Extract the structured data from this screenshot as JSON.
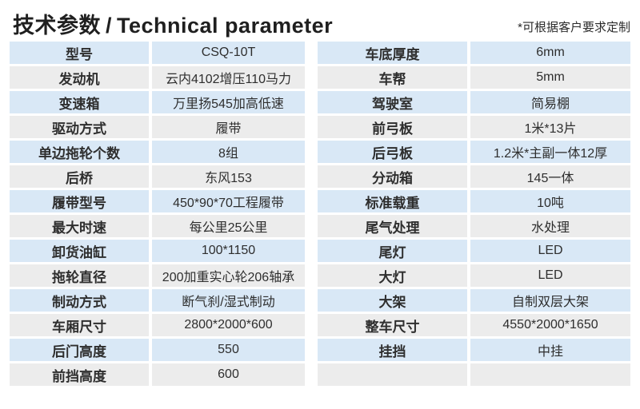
{
  "header": {
    "title_zh": "技术参数",
    "separator": "/",
    "title_en": "Technical parameter",
    "note": "*可根据客户要求定制"
  },
  "colors": {
    "row_blue": "#d9e8f6",
    "row_gray": "#ececec",
    "text": "#2e2e2e"
  },
  "tables": {
    "left": {
      "rows": [
        {
          "label": "型号",
          "value": "CSQ-10T"
        },
        {
          "label": "发动机",
          "value": "云内4102增压110马力"
        },
        {
          "label": "变速箱",
          "value": "万里扬545加高低速"
        },
        {
          "label": "驱动方式",
          "value": "履带"
        },
        {
          "label": "单边拖轮个数",
          "value": "8组"
        },
        {
          "label": "后桥",
          "value": "东风153"
        },
        {
          "label": "履带型号",
          "value": "450*90*70工程履带"
        },
        {
          "label": "最大时速",
          "value": "每公里25公里"
        },
        {
          "label": "卸货油缸",
          "value": "100*1150"
        },
        {
          "label": "拖轮直径",
          "value": "200加重实心轮206轴承"
        },
        {
          "label": "制动方式",
          "value": "断气刹/湿式制动"
        },
        {
          "label": "车厢尺寸",
          "value": "2800*2000*600"
        },
        {
          "label": "后门高度",
          "value": "550"
        },
        {
          "label": "前挡高度",
          "value": "600"
        }
      ]
    },
    "right": {
      "rows": [
        {
          "label": "车底厚度",
          "value": "6mm"
        },
        {
          "label": "车帮",
          "value": "5mm"
        },
        {
          "label": "驾驶室",
          "value": "简易棚"
        },
        {
          "label": "前弓板",
          "value": "1米*13片"
        },
        {
          "label": "后弓板",
          "value": "1.2米*主副一体12厚"
        },
        {
          "label": "分动箱",
          "value": "145一体"
        },
        {
          "label": "标准载重",
          "value": "10吨"
        },
        {
          "label": "尾气处理",
          "value": "水处理"
        },
        {
          "label": "尾灯",
          "value": "LED"
        },
        {
          "label": "大灯",
          "value": "LED"
        },
        {
          "label": "大架",
          "value": "自制双层大架"
        },
        {
          "label": "整车尺寸",
          "value": "4550*2000*1650"
        },
        {
          "label": "挂挡",
          "value": "中挂"
        },
        {
          "label": "",
          "value": ""
        }
      ]
    }
  }
}
